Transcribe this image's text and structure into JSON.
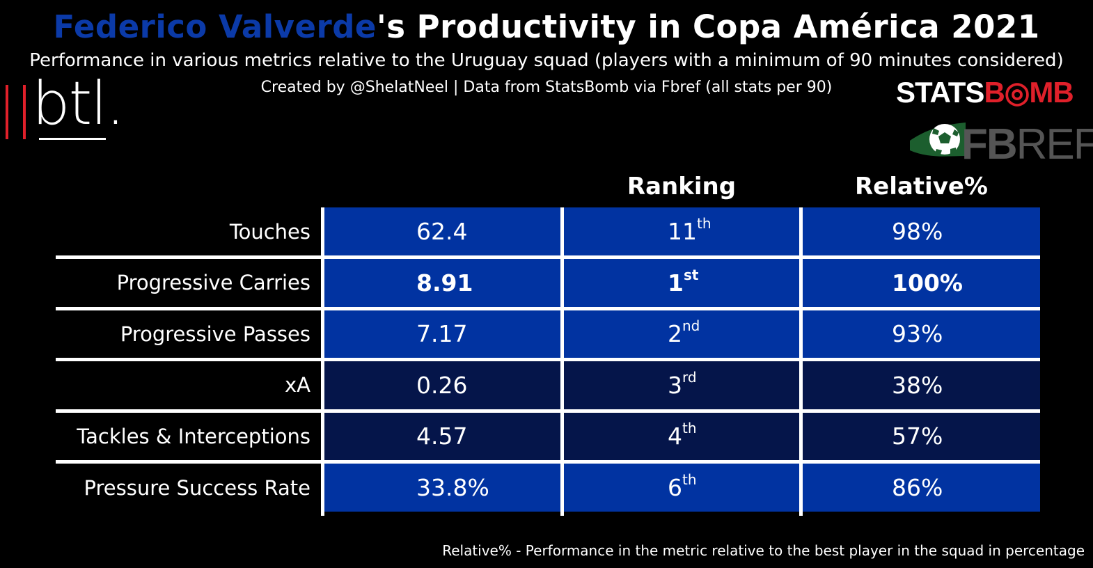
{
  "header": {
    "title_player": "Federico Valverde",
    "title_rest": "'s Productivity in Copa América 2021",
    "subtitle": "Performance in various metrics relative to the Uruguay squad (players with a minimum of 90 minutes considered)",
    "credit": "Created by @ShelatNeel | Data from StatsBomb via Fbref (all stats per 90)"
  },
  "logos": {
    "btl": "btl.",
    "statsbomb_white": "STATS",
    "statsbomb_red": "B◎MB",
    "fbref_bold": "FB",
    "fbref_light": "REF"
  },
  "columns": {
    "ranking": "Ranking",
    "relative": "Relative%"
  },
  "footnote": "Relative% - Performance in the metric relative to the best player in the squad in percentage",
  "colors": {
    "strong": "#0133a1",
    "weak": "#05154a",
    "accent_player": "#0b3aa8"
  },
  "chart_data": {
    "type": "table",
    "columns": [
      "",
      "",
      "Ranking",
      "Relative%"
    ],
    "rows": [
      {
        "metric": "Touches",
        "value": "62.4",
        "rank_num": "11",
        "rank_suffix": "th",
        "relative": "98%",
        "relative_value": 98,
        "highlight": false
      },
      {
        "metric": "Progressive Carries",
        "value": "8.91",
        "rank_num": "1",
        "rank_suffix": "st",
        "relative": "100%",
        "relative_value": 100,
        "highlight": true
      },
      {
        "metric": "Progressive Passes",
        "value": "7.17",
        "rank_num": "2",
        "rank_suffix": "nd",
        "relative": "93%",
        "relative_value": 93,
        "highlight": false
      },
      {
        "metric": "xA",
        "value": "0.26",
        "rank_num": "3",
        "rank_suffix": "rd",
        "relative": "38%",
        "relative_value": 38,
        "highlight": false
      },
      {
        "metric": "Tackles & Interceptions",
        "value": "4.57",
        "rank_num": "4",
        "rank_suffix": "th",
        "relative": "57%",
        "relative_value": 57,
        "highlight": false
      },
      {
        "metric": "Pressure Success Rate",
        "value": "33.8%",
        "rank_num": "6",
        "rank_suffix": "th",
        "relative": "86%",
        "relative_value": 86,
        "highlight": false
      }
    ]
  }
}
